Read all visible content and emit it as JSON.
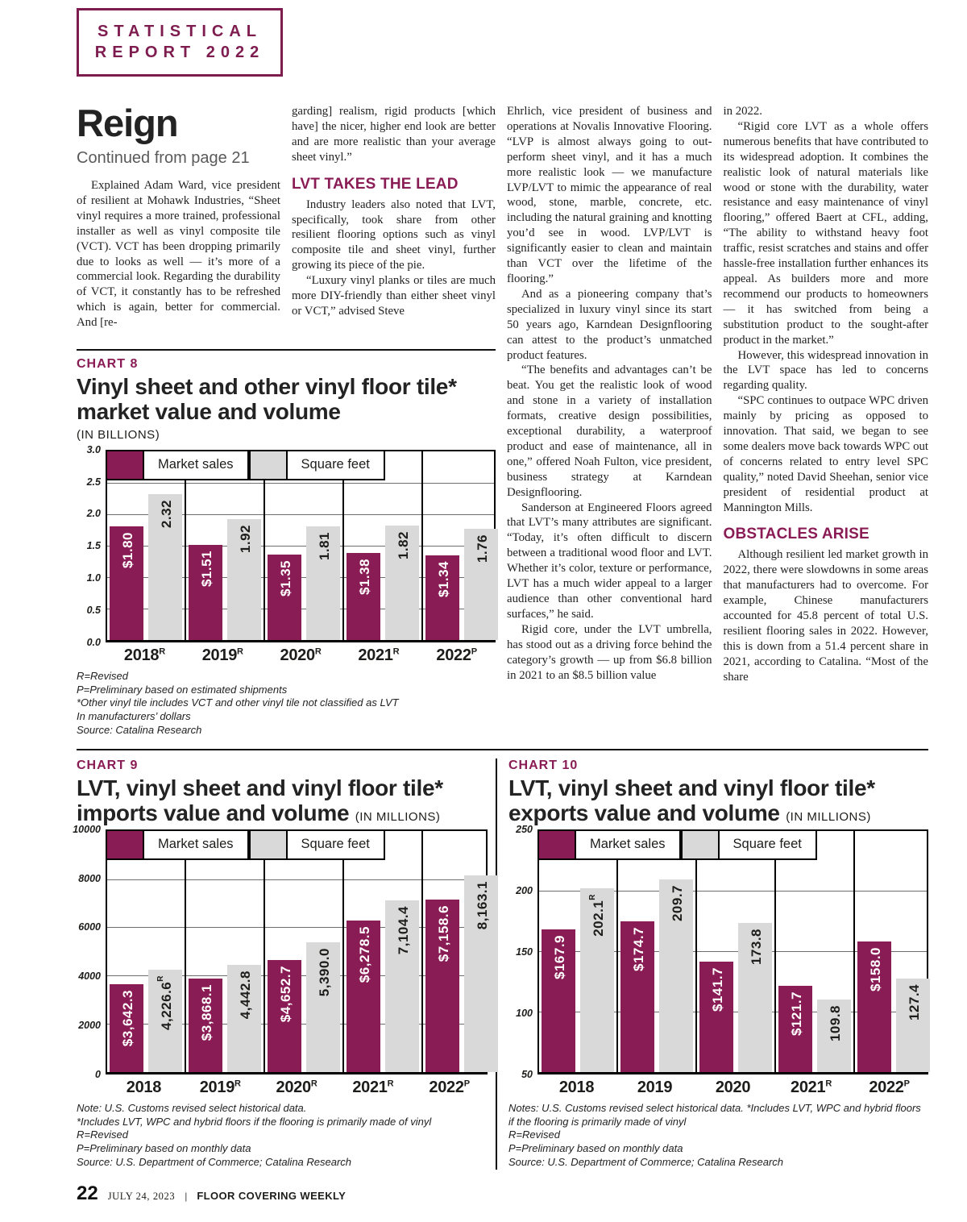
{
  "colors": {
    "accent": "#8a1c55",
    "bar_market": "#8a1c55",
    "bar_square_feet": "#d9d9d9"
  },
  "badge": {
    "line1": "STATISTICAL",
    "line2": "REPORT 2022"
  },
  "article": {
    "title": "Reign",
    "continued": "Continued from page 21",
    "columns": [
      {
        "blocks": [
          {
            "text": "Explained Adam Ward, vice president of resilient at Mohawk Industries, “Sheet vinyl requires a more trained, professional installer as well as vinyl composite tile (VCT). VCT has been dropping primarily due to looks as well — it’s more of a commercial look. Regarding the durability of VCT, it constantly has to be refreshed which is again, better for commercial. And [re-"
          }
        ]
      },
      {
        "blocks": [
          {
            "text": "garding] realism, rigid products [which have] the nicer, higher end look are better and are more realistic than your average sheet vinyl.”"
          },
          {
            "text": "LVT TAKES THE LEAD"
          },
          {
            "text": "Industry leaders also noted that LVT, specifically, took share from other resilient flooring options such as vinyl composite tile and sheet vinyl, further growing its piece of the pie."
          },
          {
            "text": "“Luxury vinyl planks or tiles are much more DIY-friendly than either sheet vinyl or VCT,” advised Steve"
          }
        ]
      },
      {
        "blocks": [
          {
            "text": "Ehrlich, vice president of business and operations at Novalis Innovative Flooring. “LVP is almost always going to out-perform sheet vinyl, and it has a much more realistic look — we manufacture LVP/LVT to mimic the appearance of real wood, stone, marble, concrete, etc. including the natural graining and knotting you’d see in wood. LVP/LVT is significantly easier to clean and maintain than VCT over the lifetime of the flooring.”"
          },
          {
            "text": "And as a pioneering company that’s specialized in luxury vinyl since its start 50 years ago, Karndean Designflooring can attest to the product’s unmatched product features."
          },
          {
            "text": "“The benefits and advantages can’t be beat. You get the realistic look of wood and stone in a variety of installation formats, creative design possibilities, exceptional durability, a waterproof product and ease of maintenance, all in one,” offered Noah Fulton, vice president, business strategy at Karndean Designflooring."
          },
          {
            "text": "Sanderson at Engineered Floors agreed that LVT’s many attributes are significant. “Today, it’s often difficult to discern between a traditional wood floor and LVT. Whether it’s color, texture or performance, LVT has a much wider appeal to a larger audience than other conventional hard surfaces,” he said."
          },
          {
            "text": "Rigid core, under the LVT umbrella, has stood out as a driving force behind the category’s growth — up from $6.8 billion in 2021 to an $8.5 billion value"
          }
        ]
      },
      {
        "blocks": [
          {
            "text": "in 2022."
          },
          {
            "text": "“Rigid core LVT as a whole offers numerous benefits that have contributed to its widespread adoption. It combines the realistic look of natural materials like wood or stone with the durability, water resistance and easy maintenance of vinyl flooring,” offered Baert at CFL, adding, “The ability to withstand heavy foot traffic, resist scratches and stains and offer hassle-free installation further enhances its appeal. As builders more and more recommend our products to homeowners — it has switched from being a substitution product to the sought-after product in the market.”"
          },
          {
            "text": "However, this widespread innovation in the LVT space has led to concerns regarding quality."
          },
          {
            "text": "“SPC continues to outpace WPC driven mainly by pricing as opposed to innovation. That said, we began to see some dealers move back towards WPC out of concerns related to entry level SPC quality,” noted David Sheehan, senior vice president of residential product at Mannington Mills."
          },
          {
            "text": "OBSTACLES ARISE"
          },
          {
            "text": "Although resilient led market growth in 2022, there were slowdowns in some areas that manufacturers had to overcome. For example, Chinese manufacturers accounted for 45.8 percent of total U.S. resilient flooring sales in 2022. However, this is down from a 51.4 percent share in 2021, according to Catalina. “Most of the share"
          }
        ]
      }
    ]
  },
  "chart_data": [
    {
      "id": "chart-8",
      "type": "bar",
      "label": "CHART 8",
      "title": "Vinyl sheet and other vinyl floor tile* market value and volume",
      "subtitle": "(IN BILLIONS)",
      "ylim": [
        0,
        3
      ],
      "yticks": [
        "3.0",
        "2.5",
        "2.0",
        "1.5",
        "1.0",
        "0.5",
        "0.0"
      ],
      "categories": [
        {
          "text": "2018",
          "sup": "R"
        },
        {
          "text": "2019",
          "sup": "R"
        },
        {
          "text": "2020",
          "sup": "R"
        },
        {
          "text": "2021",
          "sup": "R"
        },
        {
          "text": "2022",
          "sup": "P"
        }
      ],
      "series": [
        {
          "key": "market",
          "name": "Market sales",
          "color": "#8a1c55",
          "values": [
            1.8,
            1.51,
            1.35,
            1.38,
            1.34
          ],
          "labels": [
            {
              "text": "$1.80",
              "sup": ""
            },
            {
              "text": "$1.51",
              "sup": ""
            },
            {
              "text": "$1.35",
              "sup": ""
            },
            {
              "text": "$1.38",
              "sup": ""
            },
            {
              "text": "$1.34",
              "sup": ""
            }
          ]
        },
        {
          "key": "sqft",
          "name": "Square feet",
          "color": "#d9d9d9",
          "values": [
            2.32,
            1.92,
            1.81,
            1.82,
            1.76
          ],
          "labels": [
            {
              "text": "2.32",
              "sup": ""
            },
            {
              "text": "1.92",
              "sup": ""
            },
            {
              "text": "1.81",
              "sup": ""
            },
            {
              "text": "1.82",
              "sup": ""
            },
            {
              "text": "1.76",
              "sup": ""
            }
          ]
        }
      ],
      "footnotes": [
        "R=Revised",
        "P=Preliminary based on estimated shipments",
        "*Other vinyl tile includes VCT and other vinyl tile not classified as LVT",
        "In manufacturers’ dollars",
        "Source: Catalina Research"
      ]
    },
    {
      "id": "chart-9",
      "type": "bar",
      "label": "CHART 9",
      "title": "LVT, vinyl sheet and vinyl floor tile* imports value and volume",
      "subtitle": "(IN MILLIONS)",
      "ylim": [
        0,
        10000
      ],
      "yticks": [
        "10000",
        "8000",
        "6000",
        "4000",
        "2000",
        "0"
      ],
      "categories": [
        {
          "text": "2018",
          "sup": ""
        },
        {
          "text": "2019",
          "sup": "R"
        },
        {
          "text": "2020",
          "sup": "R"
        },
        {
          "text": "2021",
          "sup": "R"
        },
        {
          "text": "2022",
          "sup": "P"
        }
      ],
      "series": [
        {
          "key": "market",
          "name": "Market sales",
          "color": "#8a1c55",
          "values": [
            3642.3,
            3868.1,
            4652.7,
            6278.5,
            7158.6
          ],
          "labels": [
            {
              "text": "$3,642.3",
              "sup": ""
            },
            {
              "text": "$3,868.1",
              "sup": ""
            },
            {
              "text": "$4,652.7",
              "sup": ""
            },
            {
              "text": "$6,278.5",
              "sup": ""
            },
            {
              "text": "$7,158.6",
              "sup": ""
            }
          ]
        },
        {
          "key": "sqft",
          "name": "Square feet",
          "color": "#d9d9d9",
          "values": [
            4226.6,
            4442.8,
            5390.0,
            7104.4,
            8163.1
          ],
          "labels": [
            {
              "text": "4,226.6",
              "sup": "R"
            },
            {
              "text": "4,442.8",
              "sup": ""
            },
            {
              "text": "5,390.0",
              "sup": ""
            },
            {
              "text": "7,104.4",
              "sup": ""
            },
            {
              "text": "8,163.1",
              "sup": ""
            }
          ]
        }
      ],
      "footnotes": [
        "Note: U.S. Customs revised select historical data.",
        "*Includes LVT, WPC and hybrid floors if the flooring is primarily made of vinyl",
        "R=Revised",
        "P=Preliminary based on monthly data",
        "Source: U.S. Department of Commerce; Catalina Research"
      ]
    },
    {
      "id": "chart-10",
      "type": "bar",
      "label": "CHART 10",
      "title": "LVT, vinyl sheet and vinyl floor tile* exports value and volume",
      "subtitle": "(IN MILLIONS)",
      "ylim": [
        50,
        250
      ],
      "yticks": [
        "250",
        "200",
        "150",
        "100",
        "50"
      ],
      "categories": [
        {
          "text": "2018",
          "sup": ""
        },
        {
          "text": "2019",
          "sup": ""
        },
        {
          "text": "2020",
          "sup": ""
        },
        {
          "text": "2021",
          "sup": "R"
        },
        {
          "text": "2022",
          "sup": "P"
        }
      ],
      "series": [
        {
          "key": "market",
          "name": "Market sales",
          "color": "#8a1c55",
          "values": [
            167.9,
            174.7,
            141.7,
            121.7,
            158.0
          ],
          "labels": [
            {
              "text": "$167.9",
              "sup": ""
            },
            {
              "text": "$174.7",
              "sup": ""
            },
            {
              "text": "$141.7",
              "sup": ""
            },
            {
              "text": "$121.7",
              "sup": ""
            },
            {
              "text": "$158.0",
              "sup": ""
            }
          ]
        },
        {
          "key": "sqft",
          "name": "Square feet",
          "color": "#d9d9d9",
          "values": [
            202.1,
            209.7,
            173.8,
            109.8,
            127.4
          ],
          "labels": [
            {
              "text": "202.1",
              "sup": "R"
            },
            {
              "text": "209.7",
              "sup": ""
            },
            {
              "text": "173.8",
              "sup": ""
            },
            {
              "text": "109.8",
              "sup": ""
            },
            {
              "text": "127.4",
              "sup": ""
            }
          ]
        }
      ],
      "footnotes": [
        "Notes: U.S. Customs revised select historical data.   *Includes LVT, WPC and hybrid floors if the flooring is primarily made of vinyl",
        "R=Revised",
        "P=Preliminary based on monthly data",
        "Source: U.S. Department of Commerce; Catalina Research"
      ]
    }
  ],
  "footer": {
    "page_number": "22",
    "date": "JULY 24, 2023",
    "separator": "|",
    "publication": "FLOOR COVERING WEEKLY"
  }
}
